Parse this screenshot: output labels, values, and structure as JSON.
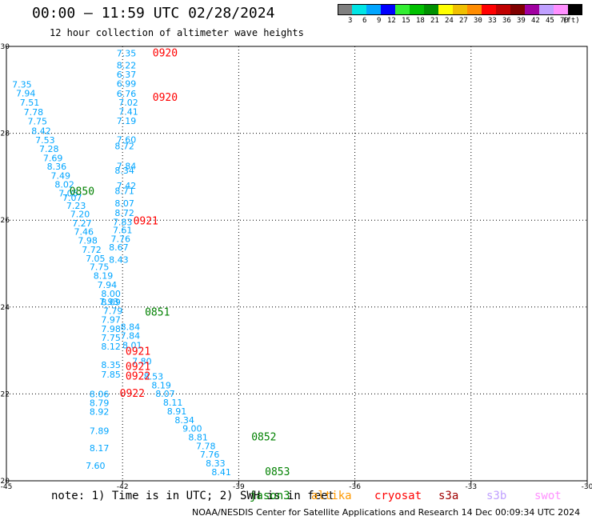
{
  "header": {
    "title": "00:00 – 11:59 UTC 02/28/2024",
    "subtitle": "12 hour collection of altimeter wave heights"
  },
  "legend": {
    "unit": "(ft)",
    "bins": [
      {
        "label": "3",
        "color": "#7f7f7f"
      },
      {
        "label": "6",
        "color": "#00e5e5"
      },
      {
        "label": "9",
        "color": "#00a5ff"
      },
      {
        "label": "12",
        "color": "#0000ff"
      },
      {
        "label": "15",
        "color": "#33ee33"
      },
      {
        "label": "18",
        "color": "#00c000"
      },
      {
        "label": "21",
        "color": "#009000"
      },
      {
        "label": "24",
        "color": "#ffff00"
      },
      {
        "label": "27",
        "color": "#f0c000"
      },
      {
        "label": "30",
        "color": "#ff8c00"
      },
      {
        "label": "33",
        "color": "#ff0000"
      },
      {
        "label": "36",
        "color": "#c00000"
      },
      {
        "label": "39",
        "color": "#800000"
      },
      {
        "label": "42",
        "color": "#a000a0"
      },
      {
        "label": "45",
        "color": "#c0a0ff"
      },
      {
        "label": "70",
        "color": "#ff90ff"
      },
      {
        "label": "",
        "color": "#000000"
      }
    ]
  },
  "note": "note: 1) Time is in UTC; 2) SWH is in feet",
  "satellites": [
    {
      "name": "jason3",
      "color": "#008000"
    },
    {
      "name": "altika",
      "color": "#ff9900"
    },
    {
      "name": "cryosat",
      "color": "#ff0000"
    },
    {
      "name": "s3a",
      "color": "#a00000"
    },
    {
      "name": "s3b",
      "color": "#c0a0ff"
    },
    {
      "name": "swot",
      "color": "#ff90ff"
    }
  ],
  "footer": "NOAA/NESDIS Center for Satellite Applications and Research   14 Dec 00:09:34 UTC 2024",
  "chart_data": {
    "type": "scatter",
    "xlim": [
      -45,
      -30
    ],
    "ylim": [
      20,
      30
    ],
    "xticks": [
      "-45",
      "-42",
      "-39",
      "-36",
      "-33",
      "-30"
    ],
    "yticks": [
      "30",
      "28",
      "26",
      "24",
      "22",
      "20"
    ],
    "grid": true,
    "data_color": "#00a5ff",
    "labels": [
      {
        "text": "7.35",
        "x": -44.6,
        "y": 29.05
      },
      {
        "text": "7.94",
        "x": -44.5,
        "y": 28.85
      },
      {
        "text": "7.51",
        "x": -44.4,
        "y": 28.64
      },
      {
        "text": "7.78",
        "x": -44.3,
        "y": 28.42
      },
      {
        "text": "7.75",
        "x": -44.2,
        "y": 28.2
      },
      {
        "text": "8.42",
        "x": -44.1,
        "y": 27.98
      },
      {
        "text": "7.53",
        "x": -44.0,
        "y": 27.77
      },
      {
        "text": "7.28",
        "x": -43.9,
        "y": 27.57
      },
      {
        "text": "7.69",
        "x": -43.8,
        "y": 27.36
      },
      {
        "text": "8.36",
        "x": -43.7,
        "y": 27.16
      },
      {
        "text": "7.49",
        "x": -43.6,
        "y": 26.95
      },
      {
        "text": "8.02",
        "x": -43.5,
        "y": 26.75
      },
      {
        "text": "7.05",
        "x": -43.4,
        "y": 26.55
      },
      {
        "text": "7.07",
        "x": -43.3,
        "y": 26.45
      },
      {
        "text": "7.23",
        "x": -43.2,
        "y": 26.26
      },
      {
        "text": "7.20",
        "x": -43.1,
        "y": 26.07
      },
      {
        "text": "7.27",
        "x": -43.05,
        "y": 25.86
      },
      {
        "text": "7.46",
        "x": -43.0,
        "y": 25.66
      },
      {
        "text": "7.98",
        "x": -42.9,
        "y": 25.46
      },
      {
        "text": "7.72",
        "x": -42.8,
        "y": 25.25
      },
      {
        "text": "7.05",
        "x": -42.7,
        "y": 25.05
      },
      {
        "text": "7.75",
        "x": -42.6,
        "y": 24.85
      },
      {
        "text": "8.19",
        "x": -42.5,
        "y": 24.65
      },
      {
        "text": "7.94",
        "x": -42.4,
        "y": 24.44
      },
      {
        "text": "7.93",
        "x": -42.35,
        "y": 24.05
      },
      {
        "text": "7.97",
        "x": -42.3,
        "y": 23.64
      },
      {
        "text": "7.98",
        "x": -42.3,
        "y": 23.43
      },
      {
        "text": "7.75",
        "x": -42.3,
        "y": 23.22
      },
      {
        "text": "8.12",
        "x": -42.3,
        "y": 23.02
      },
      {
        "text": "8.35",
        "x": -42.3,
        "y": 22.6
      },
      {
        "text": "7.85",
        "x": -42.3,
        "y": 22.38
      },
      {
        "text": "8.06",
        "x": -42.6,
        "y": 21.92
      },
      {
        "text": "8.79",
        "x": -42.6,
        "y": 21.72
      },
      {
        "text": "8.92",
        "x": -42.6,
        "y": 21.52
      },
      {
        "text": "7.89",
        "x": -42.6,
        "y": 21.08
      },
      {
        "text": "8.17",
        "x": -42.6,
        "y": 20.68
      },
      {
        "text": "7.60",
        "x": -42.7,
        "y": 20.28
      },
      {
        "text": "7.35",
        "x": -41.9,
        "y": 29.77
      },
      {
        "text": "8.22",
        "x": -41.9,
        "y": 29.49
      },
      {
        "text": "6.37",
        "x": -41.9,
        "y": 29.28
      },
      {
        "text": "6.99",
        "x": -41.9,
        "y": 29.07
      },
      {
        "text": "6.76",
        "x": -41.9,
        "y": 28.84
      },
      {
        "text": "7.02",
        "x": -41.85,
        "y": 28.64
      },
      {
        "text": "7.41",
        "x": -41.85,
        "y": 28.43
      },
      {
        "text": "7.19",
        "x": -41.9,
        "y": 28.21
      },
      {
        "text": "7.60",
        "x": -41.9,
        "y": 27.78
      },
      {
        "text": "8.72",
        "x": -41.95,
        "y": 27.63
      },
      {
        "text": "7.84",
        "x": -41.9,
        "y": 27.17
      },
      {
        "text": "8.34",
        "x": -41.95,
        "y": 27.07
      },
      {
        "text": "7.42",
        "x": -41.9,
        "y": 26.72
      },
      {
        "text": "8.71",
        "x": -41.95,
        "y": 26.6
      },
      {
        "text": "8.07",
        "x": -41.95,
        "y": 26.32
      },
      {
        "text": "8.72",
        "x": -41.95,
        "y": 26.1
      },
      {
        "text": "7.83",
        "x": -42.0,
        "y": 25.88
      },
      {
        "text": "7.61",
        "x": -42.0,
        "y": 25.7
      },
      {
        "text": "7.76",
        "x": -42.05,
        "y": 25.5
      },
      {
        "text": "8.67",
        "x": -42.1,
        "y": 25.3
      },
      {
        "text": "8.43",
        "x": -42.1,
        "y": 25.02
      },
      {
        "text": "8.00",
        "x": -42.3,
        "y": 24.24
      },
      {
        "text": "8.09",
        "x": -42.3,
        "y": 24.04
      },
      {
        "text": "7.79",
        "x": -42.25,
        "y": 23.84
      },
      {
        "text": "8.84",
        "x": -41.8,
        "y": 23.47
      },
      {
        "text": "7.84",
        "x": -41.8,
        "y": 23.27
      },
      {
        "text": "8.01",
        "x": -41.75,
        "y": 23.05
      },
      {
        "text": "7.80",
        "x": -41.5,
        "y": 22.68
      },
      {
        "text": "8.53",
        "x": -41.2,
        "y": 22.33
      },
      {
        "text": "8.19",
        "x": -41.0,
        "y": 22.13
      },
      {
        "text": "8.07",
        "x": -40.9,
        "y": 21.93
      },
      {
        "text": "8.11",
        "x": -40.7,
        "y": 21.73
      },
      {
        "text": "8.91",
        "x": -40.6,
        "y": 21.53
      },
      {
        "text": "8.34",
        "x": -40.4,
        "y": 21.33
      },
      {
        "text": "9.00",
        "x": -40.2,
        "y": 21.13
      },
      {
        "text": "8.81",
        "x": -40.05,
        "y": 20.93
      },
      {
        "text": "7.78",
        "x": -39.85,
        "y": 20.73
      },
      {
        "text": "7.76",
        "x": -39.75,
        "y": 20.53
      },
      {
        "text": "8.33",
        "x": -39.6,
        "y": 20.33
      },
      {
        "text": "8.41",
        "x": -39.45,
        "y": 20.13
      }
    ],
    "passes": [
      {
        "text": "0920",
        "x": -40.9,
        "y": 29.77,
        "color": "#ff0000"
      },
      {
        "text": "0920",
        "x": -40.9,
        "y": 28.75,
        "color": "#ff0000"
      },
      {
        "text": "0850",
        "x": -43.05,
        "y": 26.58,
        "color": "#008000"
      },
      {
        "text": "0921",
        "x": -41.4,
        "y": 25.9,
        "color": "#ff0000"
      },
      {
        "text": "0851",
        "x": -41.1,
        "y": 23.8,
        "color": "#008000"
      },
      {
        "text": "0921",
        "x": -41.6,
        "y": 22.9,
        "color": "#ff0000"
      },
      {
        "text": "0921",
        "x": -41.6,
        "y": 22.55,
        "color": "#ff0000"
      },
      {
        "text": "0922",
        "x": -41.6,
        "y": 22.33,
        "color": "#ff0000"
      },
      {
        "text": "0922",
        "x": -41.75,
        "y": 21.93,
        "color": "#ff0000"
      },
      {
        "text": "0852",
        "x": -38.35,
        "y": 20.93,
        "color": "#008000"
      },
      {
        "text": "0853",
        "x": -38.0,
        "y": 20.13,
        "color": "#008000"
      }
    ]
  }
}
